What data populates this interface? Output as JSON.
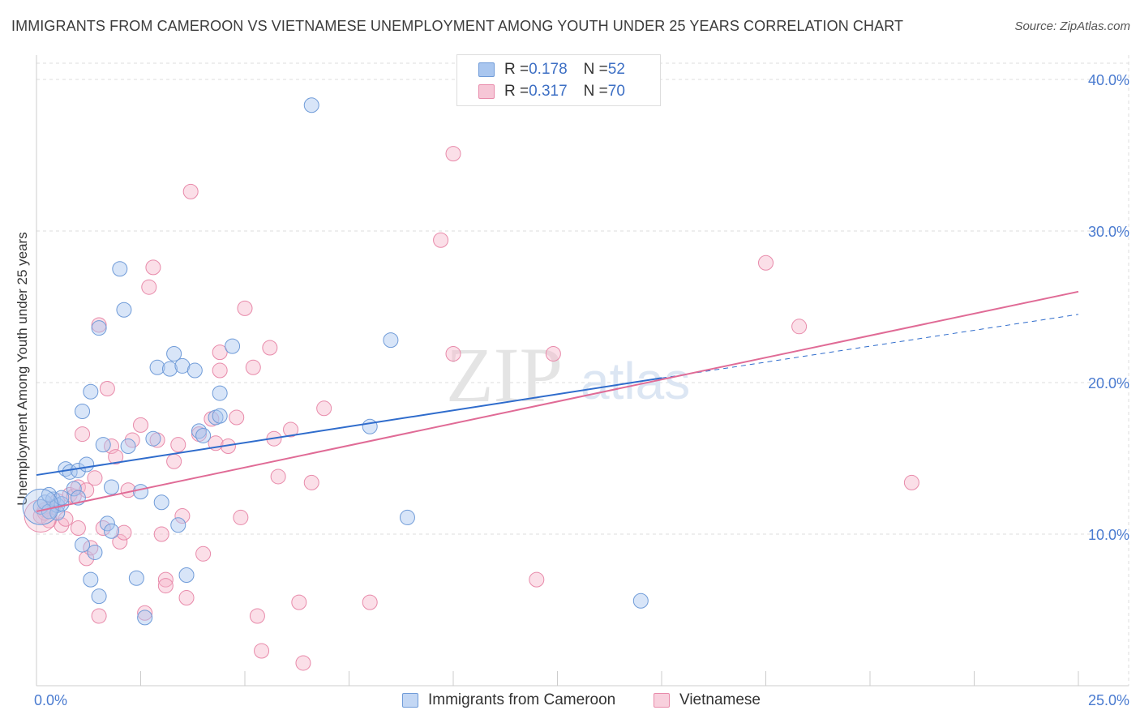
{
  "header": {
    "title": "IMMIGRANTS FROM CAMEROON VS VIETNAMESE UNEMPLOYMENT AMONG YOUTH UNDER 25 YEARS CORRELATION CHART",
    "source": "Source: ZipAtlas.com"
  },
  "legend": {
    "rows": [
      {
        "r_label": "R = ",
        "r_value": "0.178",
        "n_label": "N = ",
        "n_value": "52"
      },
      {
        "r_label": "R = ",
        "r_value": "0.317",
        "n_label": "N = ",
        "n_value": "70"
      }
    ]
  },
  "bottom_legend": {
    "series1": "Immigrants from Cameroon",
    "series2": "Vietnamese"
  },
  "watermark": {
    "zip": "ZIP",
    "atlas": "atlas"
  },
  "colors": {
    "blue_fill": "#a9c6ef",
    "blue_stroke": "#6f9bd8",
    "blue_line": "#2f6ccc",
    "pink_fill": "#f6b9cc",
    "pink_stroke": "#e88aaa",
    "pink_line": "#e06b96",
    "tick_label": "#4a7bd0",
    "grid": "#dddddd"
  },
  "chart_data": {
    "type": "scatter",
    "title": "IMMIGRANTS FROM CAMEROON VS VIETNAMESE UNEMPLOYMENT AMONG YOUTH UNDER 25 YEARS CORRELATION CHART",
    "xlabel": "",
    "ylabel": "Unemployment Among Youth under 25 years",
    "xlim": [
      0,
      25
    ],
    "ylim": [
      0,
      40
    ],
    "x_tick_labels": [
      "0.0%",
      "25.0%"
    ],
    "y_ticks": [
      10,
      20,
      30,
      40
    ],
    "y_tick_labels": [
      "10.0%",
      "20.0%",
      "30.0%",
      "40.0%"
    ],
    "grid": true,
    "legend_position": "top-center",
    "series": [
      {
        "name": "Immigrants from Cameroon",
        "r": 0.178,
        "n": 52,
        "trend": {
          "x0": 0,
          "y0": 13.9,
          "x1": 15,
          "y1": 20.3,
          "dashed_to_x": 25,
          "dashed_to_y": 24.5
        },
        "points": [
          [
            0.1,
            11.8
          ],
          [
            0.2,
            12.1
          ],
          [
            0.3,
            11.5
          ],
          [
            0.4,
            12.3
          ],
          [
            0.5,
            11.9
          ],
          [
            0.5,
            11.4
          ],
          [
            0.6,
            12.0
          ],
          [
            0.7,
            14.3
          ],
          [
            0.8,
            14.1
          ],
          [
            0.9,
            13.0
          ],
          [
            1.0,
            14.2
          ],
          [
            1.0,
            12.4
          ],
          [
            1.1,
            18.1
          ],
          [
            1.2,
            14.6
          ],
          [
            1.1,
            9.3
          ],
          [
            1.3,
            19.4
          ],
          [
            1.4,
            8.8
          ],
          [
            1.5,
            5.9
          ],
          [
            1.3,
            7.0
          ],
          [
            1.5,
            23.6
          ],
          [
            1.6,
            15.9
          ],
          [
            1.7,
            10.7
          ],
          [
            1.8,
            10.2
          ],
          [
            1.8,
            13.1
          ],
          [
            2.0,
            27.5
          ],
          [
            2.1,
            24.8
          ],
          [
            2.2,
            15.8
          ],
          [
            2.4,
            7.1
          ],
          [
            2.5,
            12.8
          ],
          [
            2.6,
            4.5
          ],
          [
            2.8,
            16.3
          ],
          [
            2.9,
            21.0
          ],
          [
            3.0,
            12.1
          ],
          [
            3.2,
            20.9
          ],
          [
            3.3,
            21.9
          ],
          [
            3.5,
            21.1
          ],
          [
            3.4,
            10.6
          ],
          [
            3.6,
            7.3
          ],
          [
            3.8,
            20.8
          ],
          [
            3.9,
            16.8
          ],
          [
            4.0,
            16.5
          ],
          [
            4.3,
            17.7
          ],
          [
            4.4,
            17.8
          ],
          [
            4.4,
            19.3
          ],
          [
            4.7,
            22.4
          ],
          [
            6.6,
            38.3
          ],
          [
            8.0,
            17.1
          ],
          [
            8.5,
            22.8
          ],
          [
            8.9,
            11.1
          ],
          [
            14.5,
            5.6
          ],
          [
            0.3,
            12.6
          ],
          [
            0.6,
            12.4
          ]
        ]
      },
      {
        "name": "Vietnamese",
        "r": 0.317,
        "n": 70,
        "trend": {
          "x0": 0,
          "y0": 11.5,
          "x1": 25,
          "y1": 26.0
        },
        "points": [
          [
            0.1,
            11.2
          ],
          [
            0.2,
            11.6
          ],
          [
            0.3,
            10.9
          ],
          [
            0.4,
            11.8
          ],
          [
            0.5,
            12.2
          ],
          [
            0.6,
            10.6
          ],
          [
            0.7,
            11.0
          ],
          [
            0.8,
            12.6
          ],
          [
            0.9,
            12.5
          ],
          [
            1.0,
            13.1
          ],
          [
            1.0,
            10.4
          ],
          [
            1.1,
            16.6
          ],
          [
            1.2,
            12.9
          ],
          [
            1.2,
            8.4
          ],
          [
            1.3,
            9.1
          ],
          [
            1.4,
            13.7
          ],
          [
            1.5,
            4.6
          ],
          [
            1.5,
            23.8
          ],
          [
            1.6,
            10.4
          ],
          [
            1.7,
            19.6
          ],
          [
            1.8,
            15.8
          ],
          [
            1.9,
            15.1
          ],
          [
            2.0,
            9.5
          ],
          [
            2.1,
            10.1
          ],
          [
            2.2,
            12.9
          ],
          [
            2.3,
            16.2
          ],
          [
            2.5,
            17.2
          ],
          [
            2.6,
            4.8
          ],
          [
            2.7,
            26.3
          ],
          [
            2.8,
            27.6
          ],
          [
            2.9,
            16.2
          ],
          [
            3.0,
            10.0
          ],
          [
            3.1,
            7.0
          ],
          [
            3.1,
            6.6
          ],
          [
            3.3,
            14.8
          ],
          [
            3.4,
            15.9
          ],
          [
            3.5,
            11.2
          ],
          [
            3.6,
            5.8
          ],
          [
            3.7,
            32.6
          ],
          [
            3.9,
            16.6
          ],
          [
            4.0,
            8.7
          ],
          [
            4.2,
            17.6
          ],
          [
            4.3,
            16.0
          ],
          [
            4.4,
            22.0
          ],
          [
            4.4,
            20.8
          ],
          [
            4.6,
            15.8
          ],
          [
            4.8,
            17.7
          ],
          [
            4.9,
            11.1
          ],
          [
            5.0,
            24.9
          ],
          [
            5.2,
            21.0
          ],
          [
            5.3,
            4.6
          ],
          [
            5.4,
            2.3
          ],
          [
            5.6,
            22.3
          ],
          [
            5.7,
            16.3
          ],
          [
            5.8,
            13.8
          ],
          [
            6.1,
            16.9
          ],
          [
            6.3,
            5.5
          ],
          [
            6.4,
            1.5
          ],
          [
            6.6,
            13.4
          ],
          [
            6.9,
            18.3
          ],
          [
            8.0,
            5.5
          ],
          [
            9.7,
            29.4
          ],
          [
            10.0,
            35.1
          ],
          [
            10.0,
            21.9
          ],
          [
            12.0,
            7.0
          ],
          [
            12.4,
            21.9
          ],
          [
            17.5,
            27.9
          ],
          [
            18.3,
            23.7
          ],
          [
            21.0,
            13.4
          ],
          [
            0.2,
            11.4
          ]
        ]
      }
    ]
  }
}
